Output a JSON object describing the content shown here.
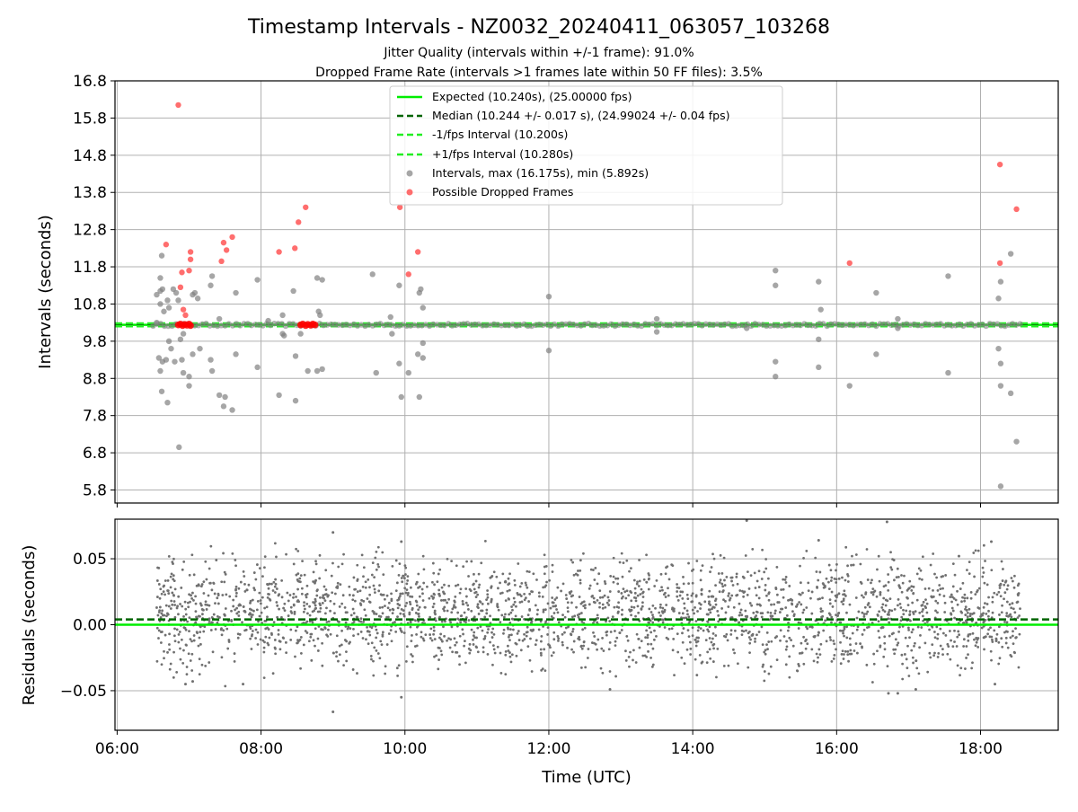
{
  "chart_data": [
    {
      "type": "scatter",
      "title": "Timestamp Intervals - NZ0032_20240411_063057_103268",
      "subtitle_lines": [
        "Jitter Quality (intervals within +/-1 frame): 91.0%",
        "Dropped Frame Rate (intervals >1 frames late within 50 FF files): 3.5%"
      ],
      "xlabel": "",
      "ylabel": "Intervals (seconds)",
      "x_unit": "hours UTC",
      "xlim": [
        5.97,
        19.08
      ],
      "ylim": [
        5.45,
        16.8
      ],
      "grid": true,
      "yticks": [
        5.8,
        6.8,
        7.8,
        8.8,
        9.8,
        10.8,
        11.8,
        12.8,
        13.8,
        14.8,
        15.8,
        16.8
      ],
      "ytick_labels": [
        "5.8",
        "6.8",
        "7.8",
        "8.8",
        "9.8",
        "10.8",
        "11.8",
        "12.8",
        "13.8",
        "14.8",
        "15.8",
        "16.8"
      ],
      "xticks": [
        6,
        8,
        10,
        12,
        14,
        16,
        18
      ],
      "legend_position": "top-center",
      "legend": [
        {
          "label": "Expected (10.240s), (25.00000 fps)",
          "color": "#00ee00",
          "style": "solid"
        },
        {
          "label": "Median (10.244 +/- 0.017 s), (24.99024 +/- 0.04 fps)",
          "color": "#006400",
          "style": "dashed"
        },
        {
          "label": "-1/fps Interval (10.200s)",
          "color": "#22ee22",
          "style": "dashed"
        },
        {
          "label": "+1/fps Interval (10.280s)",
          "color": "#22ee22",
          "style": "dashed"
        },
        {
          "label": "Intervals, max (16.175s), min (5.892s)",
          "color": "#808080",
          "style": "marker"
        },
        {
          "label": "Possible Dropped Frames",
          "color": "#ff3030",
          "style": "marker"
        }
      ],
      "reference_lines": [
        {
          "name": "expected",
          "y": 10.24,
          "color": "#00ee00",
          "style": "solid"
        },
        {
          "name": "median",
          "y": 10.244,
          "color": "#006400",
          "style": "dashed"
        },
        {
          "name": "minus1",
          "y": 10.2,
          "color": "#22ee22",
          "style": "dashed"
        },
        {
          "name": "plus1",
          "y": 10.28,
          "color": "#22ee22",
          "style": "dashed"
        }
      ],
      "band": {
        "x_start": 6.5,
        "x_end": 18.55,
        "y_center": 10.24,
        "color": "#808080"
      },
      "series": [
        {
          "name": "Intervals, max (16.175s), min (5.892s)",
          "color": "#808080",
          "points": [
            [
              6.55,
              11.05
            ],
            [
              6.6,
              11.5
            ],
            [
              6.6,
              11.15
            ],
            [
              6.62,
              12.1
            ],
            [
              6.63,
              11.2
            ],
            [
              6.55,
              10.3
            ],
            [
              6.6,
              10.8
            ],
            [
              6.65,
              10.6
            ],
            [
              6.7,
              10.9
            ],
            [
              6.72,
              10.7
            ],
            [
              6.78,
              11.2
            ],
            [
              6.82,
              11.1
            ],
            [
              6.85,
              10.9
            ],
            [
              6.58,
              9.35
            ],
            [
              6.6,
              9.0
            ],
            [
              6.63,
              9.25
            ],
            [
              6.68,
              9.3
            ],
            [
              6.72,
              9.8
            ],
            [
              6.75,
              9.6
            ],
            [
              6.8,
              9.25
            ],
            [
              6.9,
              9.3
            ],
            [
              6.88,
              9.85
            ],
            [
              6.92,
              10.0
            ],
            [
              6.62,
              8.45
            ],
            [
              6.7,
              8.15
            ],
            [
              6.86,
              6.95
            ],
            [
              6.92,
              8.95
            ],
            [
              7.0,
              8.6
            ],
            [
              7.0,
              8.85
            ],
            [
              7.05,
              9.45
            ],
            [
              7.08,
              11.1
            ],
            [
              7.05,
              11.05
            ],
            [
              7.12,
              10.95
            ],
            [
              7.15,
              9.6
            ],
            [
              7.3,
              11.3
            ],
            [
              7.3,
              9.3
            ],
            [
              7.32,
              9.0
            ],
            [
              7.32,
              11.55
            ],
            [
              7.42,
              10.4
            ],
            [
              7.42,
              8.35
            ],
            [
              7.48,
              8.05
            ],
            [
              7.5,
              8.3
            ],
            [
              7.6,
              7.95
            ],
            [
              7.65,
              11.1
            ],
            [
              7.65,
              9.45
            ],
            [
              7.95,
              11.45
            ],
            [
              7.95,
              9.1
            ],
            [
              8.1,
              10.35
            ],
            [
              8.25,
              8.35
            ],
            [
              8.3,
              10.0
            ],
            [
              8.3,
              10.5
            ],
            [
              8.32,
              9.95
            ],
            [
              8.45,
              11.15
            ],
            [
              8.48,
              9.4
            ],
            [
              8.48,
              8.2
            ],
            [
              8.55,
              10.0
            ],
            [
              8.65,
              9.0
            ],
            [
              8.78,
              11.5
            ],
            [
              8.8,
              10.6
            ],
            [
              8.82,
              10.5
            ],
            [
              8.85,
              11.45
            ],
            [
              8.78,
              9.0
            ],
            [
              8.85,
              9.05
            ],
            [
              9.55,
              11.6
            ],
            [
              9.6,
              8.95
            ],
            [
              9.8,
              10.45
            ],
            [
              9.82,
              10.0
            ],
            [
              9.92,
              11.3
            ],
            [
              9.92,
              9.2
            ],
            [
              9.95,
              8.3
            ],
            [
              10.05,
              8.95
            ],
            [
              10.18,
              9.45
            ],
            [
              10.2,
              8.3
            ],
            [
              10.2,
              11.1
            ],
            [
              10.22,
              11.2
            ],
            [
              10.25,
              10.7
            ],
            [
              10.25,
              9.35
            ],
            [
              10.25,
              9.75
            ],
            [
              12.0,
              11.0
            ],
            [
              12.0,
              9.55
            ],
            [
              13.5,
              10.05
            ],
            [
              13.5,
              10.4
            ],
            [
              14.75,
              10.15
            ],
            [
              15.15,
              11.7
            ],
            [
              15.15,
              11.3
            ],
            [
              15.15,
              9.25
            ],
            [
              15.15,
              8.85
            ],
            [
              15.75,
              11.4
            ],
            [
              15.78,
              10.65
            ],
            [
              15.75,
              9.85
            ],
            [
              15.75,
              9.1
            ],
            [
              16.18,
              8.6
            ],
            [
              16.55,
              11.1
            ],
            [
              16.55,
              9.45
            ],
            [
              16.85,
              10.15
            ],
            [
              16.85,
              10.4
            ],
            [
              17.55,
              11.55
            ],
            [
              17.55,
              8.95
            ],
            [
              18.25,
              10.95
            ],
            [
              18.28,
              11.4
            ],
            [
              18.25,
              9.6
            ],
            [
              18.28,
              9.2
            ],
            [
              18.28,
              8.6
            ],
            [
              18.28,
              5.9
            ],
            [
              18.42,
              12.15
            ],
            [
              18.42,
              8.4
            ],
            [
              18.5,
              7.1
            ]
          ]
        },
        {
          "name": "Possible Dropped Frames",
          "color": "#ff3030",
          "points": [
            [
              6.85,
              16.15
            ],
            [
              6.68,
              12.4
            ],
            [
              6.9,
              11.65
            ],
            [
              6.88,
              11.25
            ],
            [
              6.92,
              10.65
            ],
            [
              6.95,
              10.5
            ],
            [
              7.0,
              11.7
            ],
            [
              7.02,
              12.0
            ],
            [
              7.02,
              12.2
            ],
            [
              7.45,
              11.95
            ],
            [
              7.48,
              12.45
            ],
            [
              7.52,
              12.25
            ],
            [
              7.6,
              12.6
            ],
            [
              8.25,
              12.2
            ],
            [
              8.47,
              12.3
            ],
            [
              8.52,
              13.0
            ],
            [
              8.62,
              13.4
            ],
            [
              9.93,
              13.4
            ],
            [
              10.05,
              11.6
            ],
            [
              10.18,
              12.2
            ],
            [
              16.18,
              11.9
            ],
            [
              18.27,
              14.55
            ],
            [
              18.27,
              11.9
            ],
            [
              18.5,
              13.35
            ]
          ],
          "cluster_points": [
            [
              6.85,
              10.24
            ],
            [
              6.88,
              10.26
            ],
            [
              6.91,
              10.22
            ],
            [
              6.94,
              10.25
            ],
            [
              6.97,
              10.23
            ],
            [
              7.0,
              10.26
            ],
            [
              7.02,
              10.22
            ],
            [
              8.55,
              10.24
            ],
            [
              8.58,
              10.26
            ],
            [
              8.62,
              10.22
            ],
            [
              8.65,
              10.25
            ],
            [
              8.69,
              10.23
            ],
            [
              8.72,
              10.26
            ],
            [
              8.75,
              10.24
            ]
          ]
        }
      ]
    },
    {
      "type": "scatter",
      "title": "",
      "xlabel": "Time (UTC)",
      "ylabel": "Residuals (seconds)",
      "xlim": [
        5.97,
        19.08
      ],
      "ylim": [
        -0.08,
        0.08
      ],
      "grid": true,
      "yticks": [
        -0.05,
        0.0,
        0.05
      ],
      "ytick_labels": [
        "−0.05",
        "0.00",
        "0.05"
      ],
      "xticks": [
        6,
        8,
        10,
        12,
        14,
        16,
        18
      ],
      "xtick_labels": [
        "06:00",
        "08:00",
        "10:00",
        "12:00",
        "14:00",
        "16:00",
        "18:00"
      ],
      "reference_lines": [
        {
          "name": "zero",
          "y": 0.0,
          "color": "#00ee00",
          "style": "solid"
        },
        {
          "name": "median-residual",
          "y": 0.004,
          "color": "#006400",
          "style": "dashed"
        }
      ],
      "residual_cloud": {
        "x_start": 6.55,
        "x_end": 18.55,
        "center": 0.008,
        "spread": 0.022,
        "min": -0.065,
        "max": 0.078,
        "color": "#707070"
      },
      "series": [
        {
          "name": "",
          "color": "#707070",
          "points": [
            [
              9.0,
              0.07
            ],
            [
              9.0,
              -0.066
            ],
            [
              9.95,
              0.063
            ],
            [
              9.95,
              -0.055
            ],
            [
              14.75,
              0.079
            ],
            [
              16.7,
              0.078
            ],
            [
              16.72,
              -0.052
            ],
            [
              16.85,
              -0.052
            ],
            [
              15.75,
              0.064
            ],
            [
              17.7,
              0.052
            ],
            [
              18.15,
              0.063
            ],
            [
              17.1,
              -0.049
            ],
            [
              18.2,
              -0.045
            ],
            [
              12.85,
              -0.049
            ],
            [
              7.05,
              -0.043
            ],
            [
              6.95,
              -0.045
            ],
            [
              7.75,
              -0.045
            ]
          ]
        }
      ]
    }
  ]
}
